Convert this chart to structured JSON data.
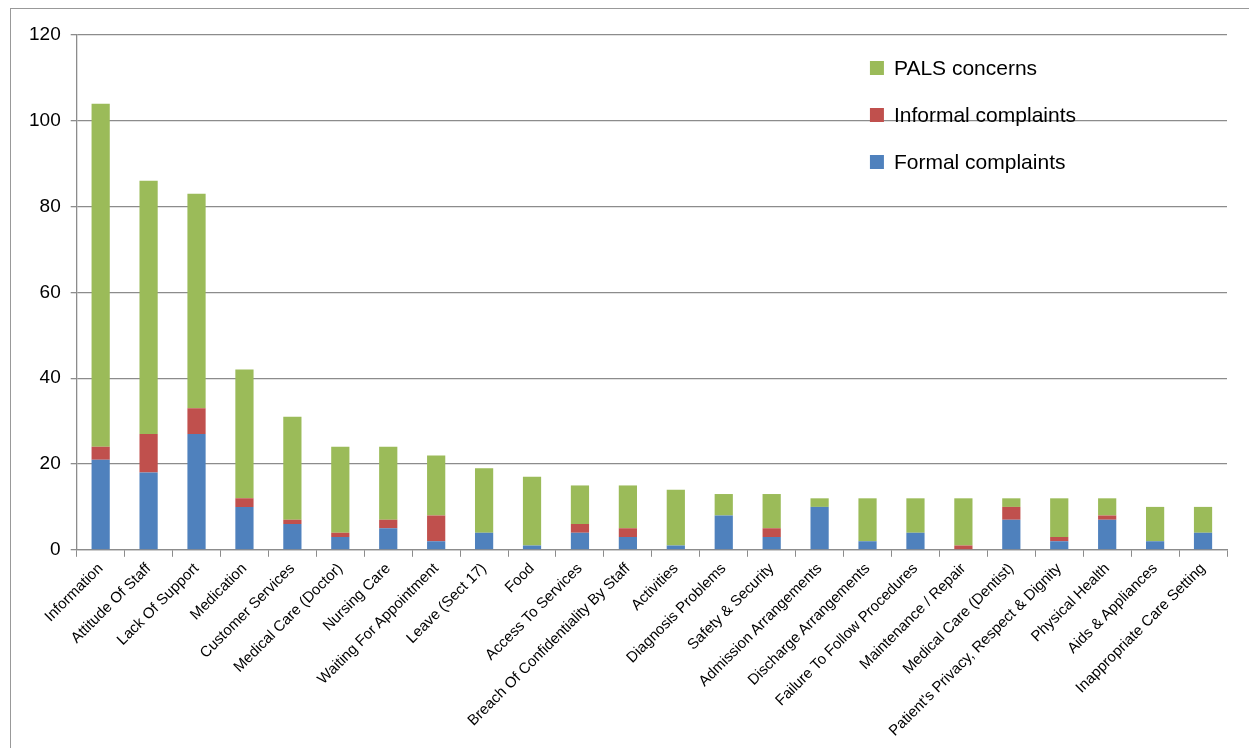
{
  "chart_data": {
    "type": "bar",
    "stacked": true,
    "categories": [
      "Information",
      "Attitude Of Staff",
      "Lack Of Support",
      "Medication",
      "Customer Services",
      "Medical Care (Doctor)",
      "Nursing Care",
      "Waiting For Appointment",
      "Leave (Sect 17)",
      "Food",
      "Access To Services",
      "Breach Of Confidentiality By Staff",
      "Activities",
      "Diagnosis Problems",
      "Safety & Security",
      "Admission Arrangements",
      "Discharge Arrangements",
      "Failure To Follow Procedures",
      "Maintenance / Repair",
      "Medical Care (Dentist)",
      "Patient's Privacy, Respect & Dignity",
      "Physical Health",
      "Aids & Appliances",
      "Inappropriate Care Setting"
    ],
    "series": [
      {
        "name": "Formal complaints",
        "color": "#4f81bd",
        "values": [
          21,
          18,
          27,
          10,
          6,
          3,
          5,
          2,
          4,
          1,
          4,
          3,
          1,
          8,
          3,
          10,
          2,
          4,
          0,
          7,
          2,
          7,
          2,
          4
        ]
      },
      {
        "name": "Informal complaints",
        "color": "#c0504d",
        "values": [
          3,
          9,
          6,
          2,
          1,
          1,
          2,
          6,
          0,
          0,
          2,
          2,
          0,
          0,
          2,
          0,
          0,
          0,
          1,
          3,
          1,
          1,
          0,
          0
        ]
      },
      {
        "name": "PALS concerns",
        "color": "#9bbb59",
        "values": [
          80,
          59,
          50,
          30,
          24,
          20,
          17,
          14,
          15,
          16,
          9,
          10,
          13,
          5,
          8,
          2,
          10,
          8,
          11,
          2,
          9,
          4,
          8,
          6
        ]
      }
    ],
    "ylim": [
      0,
      120
    ],
    "yticks": [
      0,
      20,
      40,
      60,
      80,
      100,
      120
    ],
    "grid": "y",
    "legend": "top right"
  }
}
